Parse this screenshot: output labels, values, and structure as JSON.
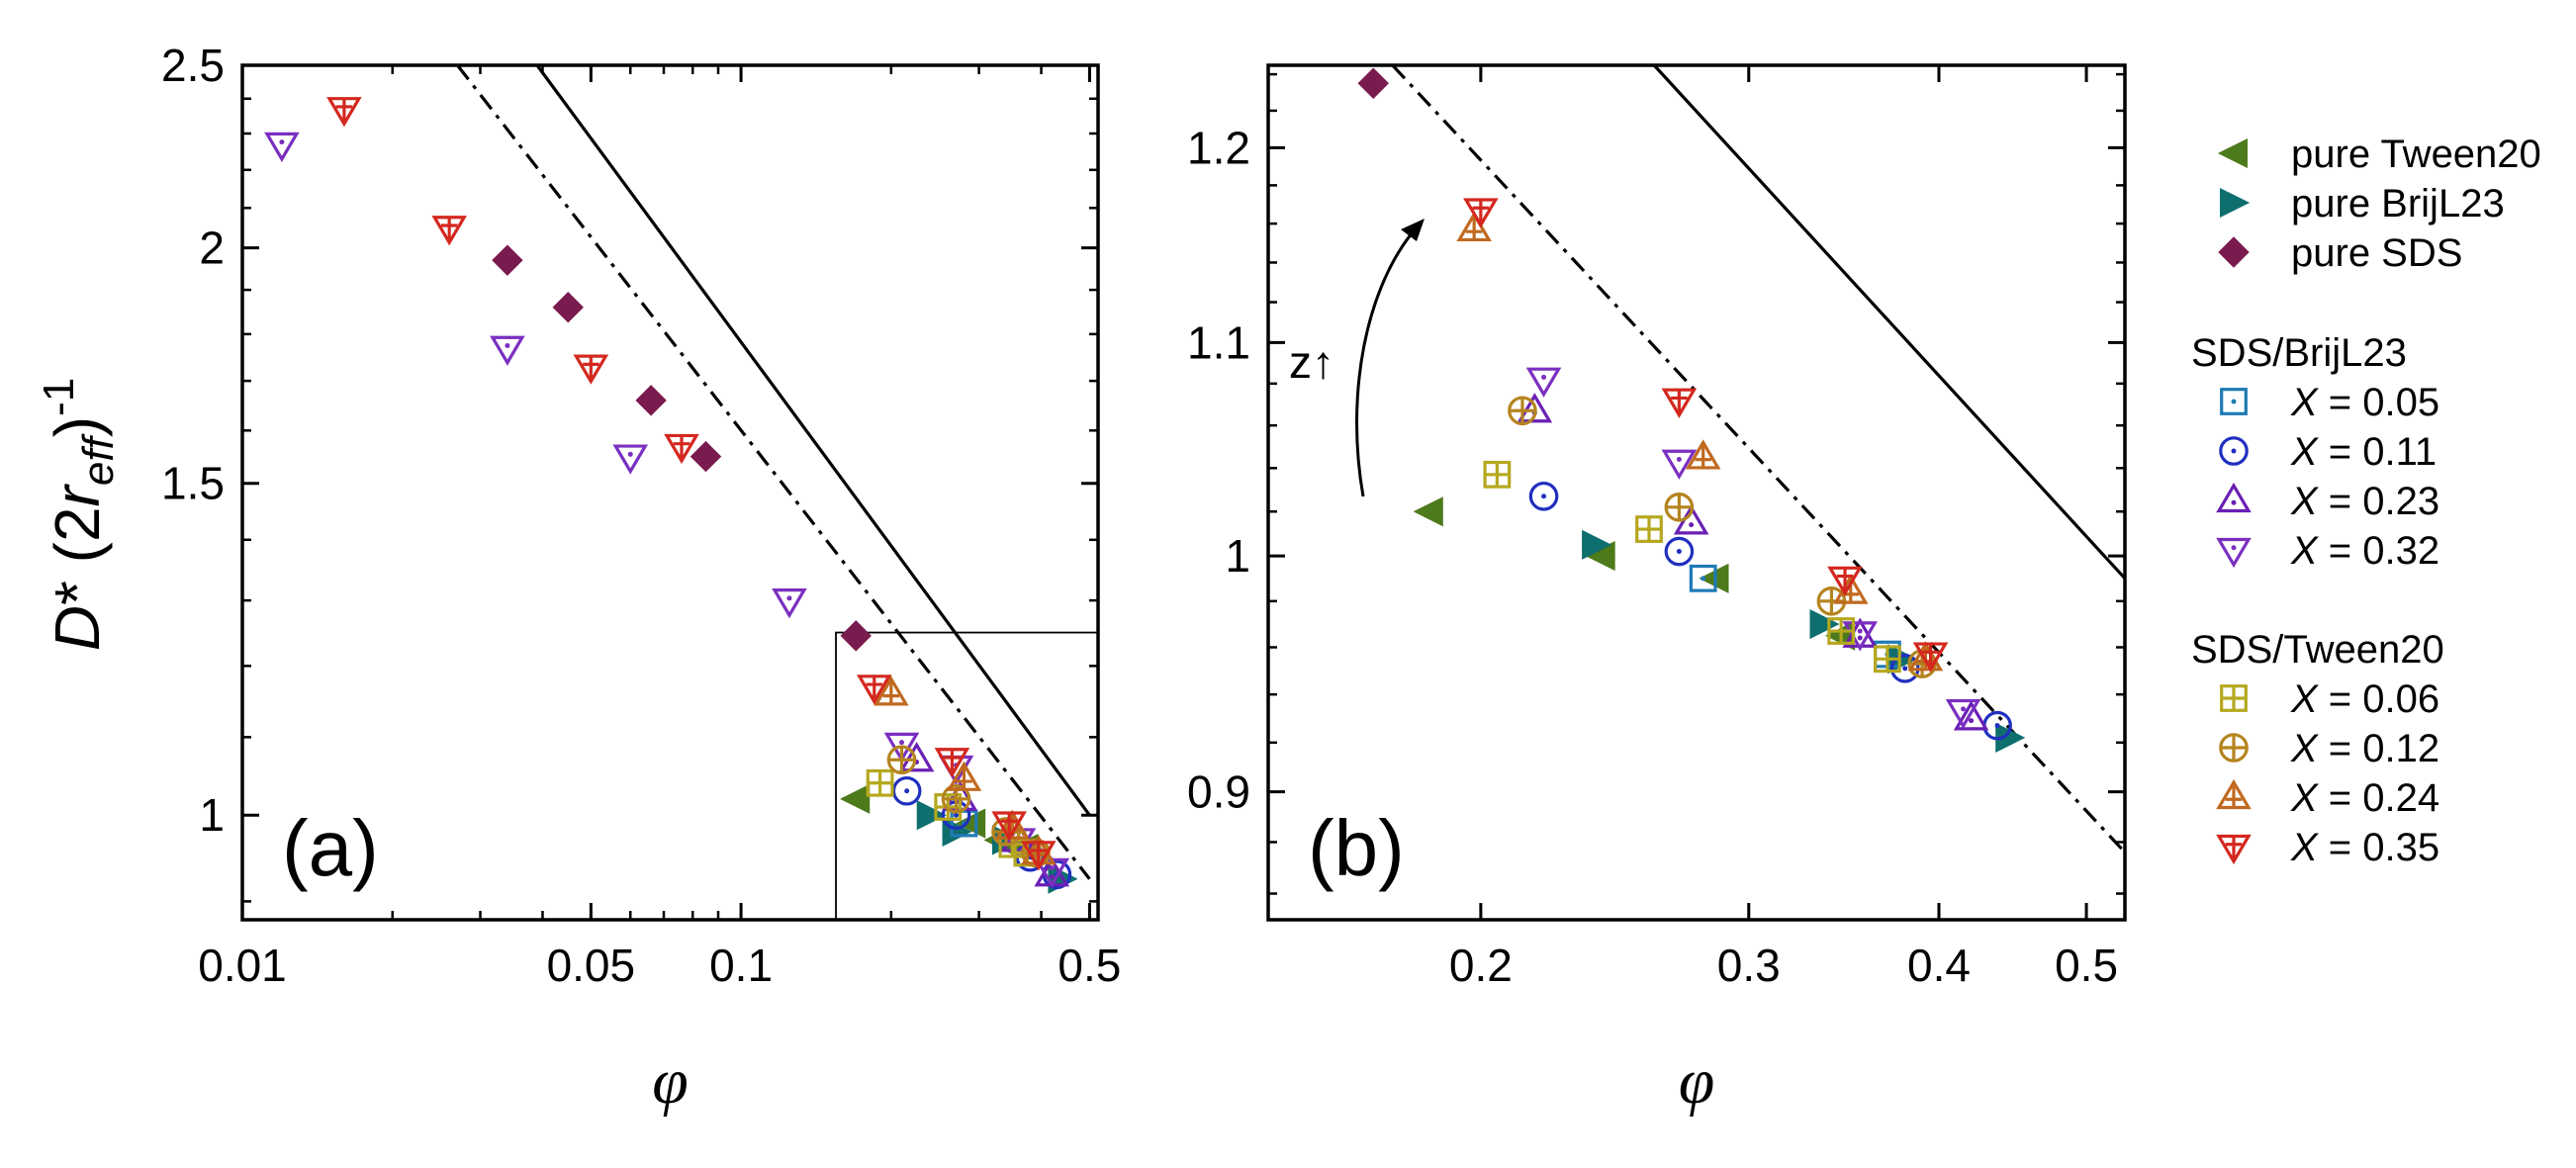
{
  "chart_data": [
    {
      "panel": "(a)",
      "type": "scatter",
      "xscale": "log",
      "yscale": "log",
      "xlim": [
        0.01,
        0.52
      ],
      "ylim": [
        0.88,
        2.5
      ],
      "xticks": [
        0.01,
        0.05,
        0.1,
        0.5
      ],
      "xtick_labels": [
        "0.01",
        "0.05",
        "0.1",
        "0.5"
      ],
      "yticks": [
        1,
        1.5,
        2,
        2.5
      ],
      "ytick_labels": [
        "1",
        "1.5",
        "2",
        "2.5"
      ],
      "xlabel": "φ",
      "ylabel": "D* (2r_eff)^-1",
      "panel_label": "(a)",
      "inset_box": {
        "x": [
          0.155,
          0.52
        ],
        "y": [
          0.88,
          1.25
        ]
      },
      "lines": [
        {
          "name": "solid",
          "style": "solid",
          "points": [
            [
              0.039,
              2.5
            ],
            [
              0.5,
              1.0
            ]
          ]
        },
        {
          "name": "dash-dot",
          "style": "dashdot",
          "points": [
            [
              0.027,
              2.5
            ],
            [
              0.5,
              0.925
            ]
          ]
        }
      ],
      "series": [
        {
          "name": "pure SDS",
          "marker": "diamond",
          "color": "#7a1b4f",
          "points": [
            [
              0.034,
              1.97
            ],
            [
              0.045,
              1.86
            ],
            [
              0.066,
              1.66
            ],
            [
              0.085,
              1.55
            ],
            [
              0.17,
              1.245
            ]
          ]
        },
        {
          "name": "pure Tween20",
          "marker": "triangle-left",
          "color": "#4d7a1b",
          "points": [
            [
              0.17,
              1.02
            ],
            [
              0.29,
              0.99
            ],
            [
              0.33,
              0.97
            ],
            [
              0.37,
              0.96
            ]
          ]
        },
        {
          "name": "pure BrijL23",
          "marker": "triangle-right",
          "color": "#0f6e6e",
          "points": [
            [
              0.24,
              1.0
            ],
            [
              0.27,
              0.98
            ],
            [
              0.34,
              0.97
            ],
            [
              0.44,
              0.925
            ]
          ]
        },
        {
          "name": "SDS/BrijL23 X = 0.05",
          "marker": "square-dot",
          "color": "#1f7ab5",
          "points": [
            [
              0.28,
              0.99
            ],
            [
              0.375,
              0.955
            ]
          ]
        },
        {
          "name": "SDS/BrijL23 X = 0.11",
          "marker": "circle-dot",
          "color": "#1f2fc0",
          "points": [
            [
              0.215,
              1.03
            ],
            [
              0.27,
              1.0
            ],
            [
              0.38,
              0.95
            ],
            [
              0.43,
              0.93
            ]
          ]
        },
        {
          "name": "SDS/BrijL23 X = 0.23",
          "marker": "triangle-up-dot",
          "color": "#6a1fb5",
          "points": [
            [
              0.225,
              1.07
            ],
            [
              0.275,
              1.02
            ],
            [
              0.36,
              0.97
            ],
            [
              0.42,
              0.93
            ]
          ]
        },
        {
          "name": "SDS/BrijL23 X = 0.32",
          "marker": "triangle-down-dot",
          "color": "#7a2fc0",
          "points": [
            [
              0.012,
              2.27
            ],
            [
              0.034,
              1.77
            ],
            [
              0.06,
              1.55
            ],
            [
              0.125,
              1.3
            ],
            [
              0.21,
              1.09
            ],
            [
              0.27,
              1.06
            ],
            [
              0.36,
              0.97
            ],
            [
              0.42,
              0.935
            ]
          ]
        },
        {
          "name": "SDS/Tween20 X = 0.06",
          "marker": "square-plus",
          "color": "#b5a81f",
          "points": [
            [
              0.19,
              1.04
            ],
            [
              0.26,
              1.01
            ],
            [
              0.35,
              0.965
            ],
            [
              0.375,
              0.955
            ]
          ]
        },
        {
          "name": "SDS/Tween20 X = 0.12",
          "marker": "circle-plus",
          "color": "#b5841f",
          "points": [
            [
              0.21,
              1.07
            ],
            [
              0.27,
              1.02
            ],
            [
              0.34,
              0.98
            ],
            [
              0.39,
              0.955
            ]
          ]
        },
        {
          "name": "SDS/Tween20 X = 0.24",
          "marker": "triangle-up-plus",
          "color": "#c0691f",
          "points": [
            [
              0.2,
              1.16
            ],
            [
              0.28,
              1.045
            ],
            [
              0.35,
              0.985
            ],
            [
              0.395,
              0.955
            ]
          ]
        },
        {
          "name": "SDS/Tween20 X = 0.35",
          "marker": "triangle-down-plus",
          "color": "#d4281f",
          "points": [
            [
              0.016,
              2.37
            ],
            [
              0.026,
              2.05
            ],
            [
              0.05,
              1.73
            ],
            [
              0.076,
              1.57
            ],
            [
              0.185,
              1.17
            ],
            [
              0.265,
              1.07
            ],
            [
              0.345,
              0.99
            ],
            [
              0.395,
              0.955
            ]
          ]
        }
      ]
    },
    {
      "panel": "(b)",
      "type": "scatter",
      "xscale": "log",
      "yscale": "log",
      "xlim": [
        0.145,
        0.53
      ],
      "ylim": [
        0.85,
        1.245
      ],
      "xticks": [
        0.2,
        0.3,
        0.4,
        0.5
      ],
      "xtick_labels": [
        "0.2",
        "0.3",
        "0.4",
        "0.5"
      ],
      "yticks": [
        0.9,
        1.0,
        1.1,
        1.2
      ],
      "ytick_labels": [
        "0.9",
        "1",
        "1.1",
        "1.2"
      ],
      "xlabel": "φ",
      "panel_label": "(b)",
      "annotation": "z↑",
      "lines": [
        {
          "name": "solid",
          "style": "solid",
          "points": [
            [
              0.26,
              1.245
            ],
            [
              0.53,
              0.99
            ]
          ]
        },
        {
          "name": "dash-dot",
          "style": "dashdot",
          "points": [
            [
              0.175,
              1.245
            ],
            [
              0.53,
              0.876
            ]
          ]
        }
      ],
      "series": [
        {
          "name": "pure SDS",
          "marker": "diamond",
          "color": "#7a1b4f",
          "points": [
            [
              0.17,
              1.235
            ]
          ]
        },
        {
          "name": "pure Tween20",
          "marker": "triangle-left",
          "color": "#4d7a1b",
          "points": [
            [
              0.185,
              1.02
            ],
            [
              0.24,
              1.0
            ],
            [
              0.285,
              0.99
            ],
            [
              0.345,
              0.965
            ]
          ]
        },
        {
          "name": "pure BrijL23",
          "marker": "triangle-right",
          "color": "#0f6e6e",
          "points": [
            [
              0.238,
              1.005
            ],
            [
              0.336,
              0.97
            ],
            [
              0.378,
              0.955
            ],
            [
              0.445,
              0.922
            ]
          ]
        },
        {
          "name": "SDS/BrijL23 X = 0.05",
          "marker": "square-dot",
          "color": "#1f7ab5",
          "points": [
            [
              0.28,
              0.99
            ],
            [
              0.37,
              0.957
            ]
          ]
        },
        {
          "name": "SDS/BrijL23 X = 0.11",
          "marker": "circle-dot",
          "color": "#1f2fc0",
          "points": [
            [
              0.22,
              1.027
            ],
            [
              0.27,
              1.002
            ],
            [
              0.38,
              0.951
            ],
            [
              0.437,
              0.927
            ]
          ]
        },
        {
          "name": "SDS/BrijL23 X = 0.23",
          "marker": "triangle-up-dot",
          "color": "#6a1fb5",
          "points": [
            [
              0.217,
              1.067
            ],
            [
              0.275,
              1.015
            ],
            [
              0.355,
              0.965
            ],
            [
              0.42,
              0.93
            ]
          ]
        },
        {
          "name": "SDS/BrijL23 X = 0.32",
          "marker": "triangle-down-dot",
          "color": "#7a2fc0",
          "points": [
            [
              0.22,
              1.082
            ],
            [
              0.27,
              1.043
            ],
            [
              0.355,
              0.966
            ],
            [
              0.415,
              0.933
            ]
          ]
        },
        {
          "name": "SDS/Tween20 X = 0.06",
          "marker": "square-plus",
          "color": "#b5a81f",
          "points": [
            [
              0.205,
              1.037
            ],
            [
              0.258,
              1.012
            ],
            [
              0.345,
              0.967
            ],
            [
              0.37,
              0.955
            ]
          ]
        },
        {
          "name": "SDS/Tween20 X = 0.12",
          "marker": "circle-plus",
          "color": "#b5841f",
          "points": [
            [
              0.213,
              1.067
            ],
            [
              0.27,
              1.022
            ],
            [
              0.34,
              0.98
            ],
            [
              0.39,
              0.953
            ]
          ]
        },
        {
          "name": "SDS/Tween20 X = 0.24",
          "marker": "triangle-up-plus",
          "color": "#c0691f",
          "points": [
            [
              0.198,
              1.157
            ],
            [
              0.28,
              1.045
            ],
            [
              0.35,
              0.984
            ],
            [
              0.392,
              0.955
            ]
          ]
        },
        {
          "name": "SDS/Tween20 X = 0.35",
          "marker": "triangle-down-plus",
          "color": "#d4281f",
          "points": [
            [
              0.2,
              1.167
            ],
            [
              0.27,
              1.072
            ],
            [
              0.347,
              0.99
            ],
            [
              0.395,
              0.957
            ]
          ]
        }
      ]
    }
  ],
  "legend": {
    "pure": [
      {
        "label": "pure Tween20",
        "marker": "triangle-left",
        "color": "#4d7a1b"
      },
      {
        "label": "pure BrijL23",
        "marker": "triangle-right",
        "color": "#0f6e6e"
      },
      {
        "label": "pure SDS",
        "marker": "diamond",
        "color": "#7a1b4f"
      }
    ],
    "group1_title": "SDS/BrijL23",
    "group1": [
      {
        "label": "X = 0.05",
        "marker": "square-dot",
        "color": "#1f7ab5"
      },
      {
        "label": "X = 0.11",
        "marker": "circle-dot",
        "color": "#1f2fc0"
      },
      {
        "label": "X = 0.23",
        "marker": "triangle-up-dot",
        "color": "#6a1fb5"
      },
      {
        "label": "X = 0.32",
        "marker": "triangle-down-dot",
        "color": "#7a2fc0"
      }
    ],
    "group2_title": "SDS/Tween20",
    "group2": [
      {
        "label": "X = 0.06",
        "marker": "square-plus",
        "color": "#b5a81f"
      },
      {
        "label": "X = 0.12",
        "marker": "circle-plus",
        "color": "#b5841f"
      },
      {
        "label": "X = 0.24",
        "marker": "triangle-up-plus",
        "color": "#c0691f"
      },
      {
        "label": "X = 0.35",
        "marker": "triangle-down-plus",
        "color": "#d4281f"
      }
    ]
  }
}
